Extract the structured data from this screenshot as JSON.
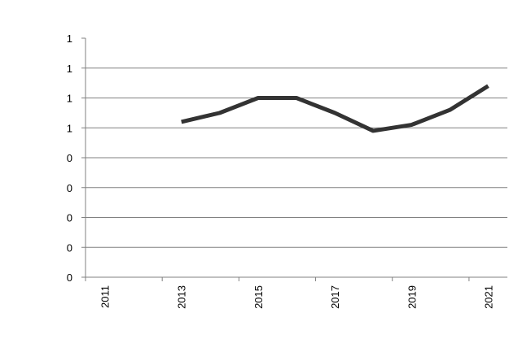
{
  "chart_data": {
    "type": "line",
    "title": "",
    "xlabel": "",
    "ylabel": "",
    "x": [
      2013,
      2014,
      2015,
      2016,
      2017,
      2018,
      2019,
      2020,
      2021
    ],
    "series": [
      {
        "values": [
          0.52,
          0.55,
          0.6,
          0.6,
          0.55,
          0.49,
          0.51,
          0.56,
          0.64
        ]
      }
    ],
    "xlim": [
      2010.5,
      2021.5
    ],
    "ylim": [
      0,
      0.8
    ],
    "y_ticks": [
      0,
      0.1,
      0.2,
      0.3,
      0.4,
      0.5,
      0.6,
      0.7,
      0.8
    ],
    "y_tick_labels": [
      "0",
      "0",
      "0",
      "0",
      "0",
      "1",
      "1",
      "1",
      "1"
    ],
    "x_tick_labels": [
      "2011",
      "2013",
      "2015",
      "2017",
      "2019",
      "2021"
    ],
    "x_tick_values": [
      2011,
      2013,
      2015,
      2017,
      2019,
      2021
    ],
    "grid": true,
    "line_color": "#333333",
    "grid_color": "#808080"
  }
}
